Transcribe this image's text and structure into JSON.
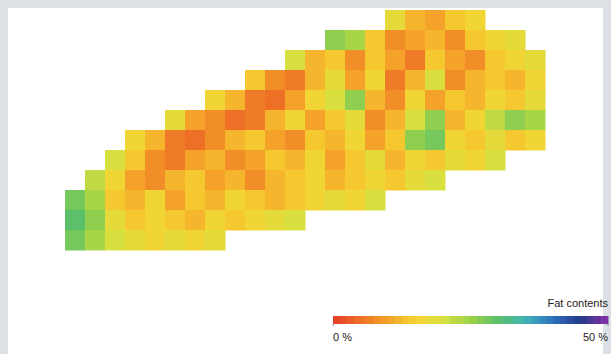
{
  "chart_data": {
    "type": "heatmap",
    "cells": [
      [
        null,
        null,
        null,
        null,
        null,
        null,
        null,
        null,
        null,
        null,
        null,
        null,
        null,
        null,
        null,
        null,
        18,
        12,
        10,
        14,
        16,
        null,
        null,
        null
      ],
      [
        null,
        null,
        null,
        null,
        null,
        null,
        null,
        null,
        null,
        null,
        null,
        null,
        null,
        26,
        24,
        14,
        8,
        10,
        12,
        8,
        14,
        16,
        18,
        null
      ],
      [
        null,
        null,
        null,
        null,
        null,
        null,
        null,
        null,
        null,
        null,
        null,
        20,
        12,
        14,
        8,
        14,
        10,
        6,
        14,
        10,
        8,
        14,
        16,
        18
      ],
      [
        null,
        null,
        null,
        null,
        null,
        null,
        null,
        null,
        null,
        14,
        8,
        6,
        12,
        18,
        10,
        16,
        6,
        12,
        20,
        8,
        12,
        14,
        12,
        16
      ],
      [
        null,
        null,
        null,
        null,
        null,
        null,
        null,
        16,
        12,
        6,
        5,
        10,
        16,
        20,
        26,
        12,
        8,
        16,
        10,
        14,
        12,
        16,
        14,
        18
      ],
      [
        null,
        null,
        null,
        null,
        null,
        18,
        10,
        8,
        5,
        6,
        12,
        16,
        10,
        14,
        18,
        8,
        12,
        20,
        26,
        12,
        16,
        22,
        26,
        24
      ],
      [
        null,
        null,
        null,
        16,
        12,
        6,
        5,
        8,
        12,
        14,
        10,
        8,
        14,
        12,
        16,
        10,
        14,
        26,
        28,
        16,
        14,
        18,
        14,
        16
      ],
      [
        null,
        null,
        20,
        14,
        8,
        6,
        10,
        12,
        8,
        10,
        14,
        12,
        16,
        10,
        14,
        18,
        12,
        16,
        14,
        18,
        16,
        20,
        null,
        null
      ],
      [
        null,
        22,
        16,
        10,
        8,
        12,
        14,
        10,
        12,
        8,
        12,
        14,
        16,
        12,
        14,
        16,
        14,
        18,
        20,
        null,
        null,
        null,
        null,
        null
      ],
      [
        28,
        24,
        14,
        12,
        16,
        10,
        14,
        12,
        16,
        14,
        12,
        14,
        16,
        18,
        16,
        20,
        null,
        null,
        null,
        null,
        null,
        null,
        null,
        null
      ],
      [
        30,
        26,
        18,
        14,
        16,
        14,
        12,
        16,
        14,
        16,
        18,
        20,
        null,
        null,
        null,
        null,
        null,
        null,
        null,
        null,
        null,
        null,
        null,
        null
      ],
      [
        28,
        24,
        20,
        18,
        16,
        18,
        16,
        18,
        null,
        null,
        null,
        null,
        null,
        null,
        null,
        null,
        null,
        null,
        null,
        null,
        null,
        null,
        null,
        null
      ]
    ],
    "color_label": "Fat contents",
    "color_range": [
      0,
      50
    ],
    "color_ticks": [
      {
        "value": 0,
        "label": "0 %"
      },
      {
        "value": 50,
        "label": "50 %"
      }
    ]
  }
}
